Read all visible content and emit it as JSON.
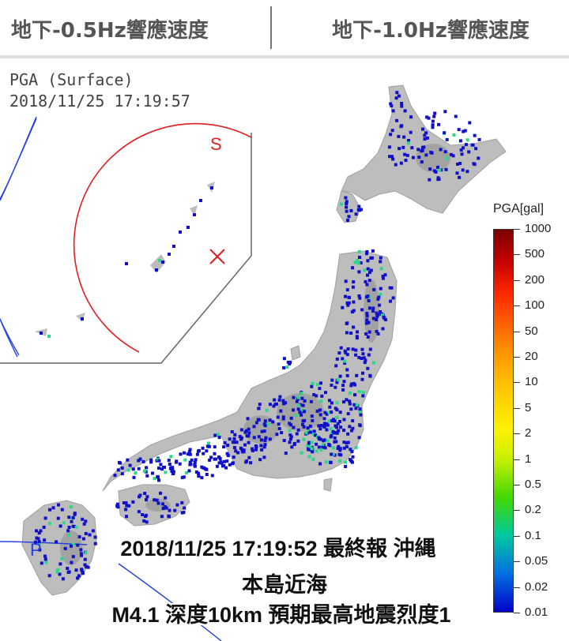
{
  "tabs": [
    {
      "label": "地下-0.5Hz響應速度"
    },
    {
      "label": "地下-1.0Hz響應速度"
    }
  ],
  "map": {
    "inset_title_line1": "PGA (Surface)",
    "inset_title_line2": "2018/11/25 17:19:57",
    "inset_s_label": "S",
    "p_label": "P",
    "colors": {
      "station_blue": "#1010c8",
      "station_green": "#2ad888",
      "s_wave": "#e02020",
      "p_wave": "#2040e0",
      "terrain": "#b8b8b8"
    },
    "epicenter_icon": "x-mark-icon"
  },
  "legend": {
    "title": "PGA[gal]",
    "labels": [
      "1000",
      "500",
      "200",
      "100",
      "50",
      "20",
      "10",
      "5",
      "2",
      "1",
      "0.5",
      "0.2",
      "0.1",
      "0.05",
      "0.02",
      "0.01"
    ]
  },
  "caption": {
    "line1": "2018/11/25 17:19:52 最終報 沖縄",
    "line2": "本島近海",
    "line3": "M4.1 深度10km 預期最高地震烈度1"
  }
}
